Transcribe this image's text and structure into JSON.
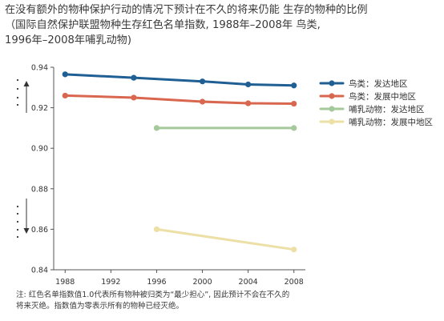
{
  "title_lines": [
    "在没有额外的物种保护行动的情况下预计在不久的将来仍能  生存的物种的比例",
    "（国际自然保护联盟物种生存红色名单指数, 1988年–2008年  鸟类,",
    "1996年–2008年哺乳动物)"
  ],
  "note_lines": [
    "注: 红色名单指数值1.0代表所有物种被归类为“最少担心”, 因此预计不会在不久的",
    "将来灭绝。指数值为零表示所有的物种已经灭绝。"
  ],
  "chart_data": {
    "type": "line",
    "title": "",
    "xlabel": "",
    "ylabel": "",
    "xlim": [
      1987,
      2009
    ],
    "ylim": [
      0.84,
      0.94
    ],
    "xticks": [
      1988,
      1992,
      1996,
      2000,
      2004,
      2008
    ],
    "yticks": [
      0.84,
      0.86,
      0.88,
      0.9,
      0.92,
      0.94
    ],
    "ytick_labels": [
      "0.84",
      "0.86",
      "0.88",
      "0.90",
      "0.92",
      "0.94"
    ],
    "grid": false,
    "legend_position": "top-right",
    "series": [
      {
        "name": "鸟类：发达地区",
        "color": "#1f5f93",
        "x": [
          1988,
          1994,
          2000,
          2004,
          2008
        ],
        "y": [
          0.9365,
          0.9348,
          0.933,
          0.9315,
          0.931
        ]
      },
      {
        "name": "鸟类：发展中地区",
        "color": "#d9674f",
        "x": [
          1988,
          1994,
          2000,
          2004,
          2008
        ],
        "y": [
          0.926,
          0.925,
          0.923,
          0.9222,
          0.922
        ]
      },
      {
        "name": "哺乳动物：发达地区",
        "color": "#a5c99a",
        "x": [
          1996,
          2008
        ],
        "y": [
          0.91,
          0.91
        ]
      },
      {
        "name": "哺乳动物：发展中地区",
        "color": "#ece0a7",
        "x": [
          1996,
          2008
        ],
        "y": [
          0.86,
          0.85
        ]
      }
    ]
  }
}
